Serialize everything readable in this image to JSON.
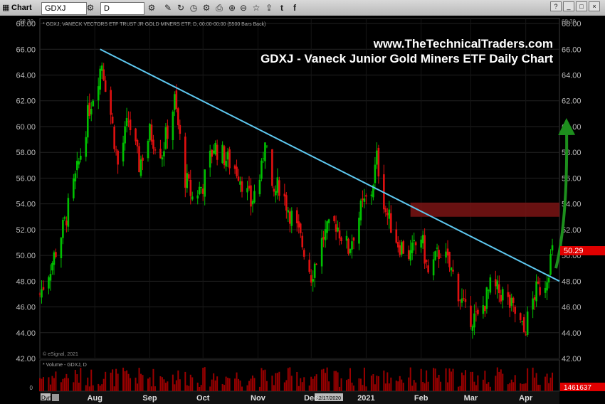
{
  "toolbar": {
    "app_label": "Chart",
    "symbol": "GDXJ",
    "interval": "D",
    "icons": [
      "pencil-icon",
      "refresh-icon",
      "clock-icon",
      "gear-icon",
      "print-icon",
      "zoom-icon",
      "zoom-out-icon",
      "star-icon",
      "share-icon",
      "twitter-icon",
      "facebook-icon"
    ],
    "window_buttons": [
      "?",
      "_",
      "□",
      "×"
    ]
  },
  "header": {
    "website": "www.TheTechnicalTraders.com",
    "title": "GDXJ - Vaneck Junior Gold Miners ETF Daily Chart",
    "info": "* GDXJ, VANECK VECTORS ETF TRUST JR GOLD MINERS ETF, D, 00:00-00:00 (5500 Bars Back)",
    "copyright": "© eSignal, 2021",
    "top_value": "68.39"
  },
  "price_panel": {
    "last_price": "50.29",
    "last_price_color": "#e00000"
  },
  "volume_panel": {
    "label": "* Volume - GDXJ, D",
    "last_volume": "1461637"
  },
  "x_axis": {
    "dyn_label": "Dyn",
    "cursor_date": "12/17/2020",
    "months": [
      "Aug",
      "Sep",
      "Oct",
      "Nov",
      "Dec",
      "2021",
      "Feb",
      "Mar",
      "Apr"
    ]
  },
  "chart_data": [
    {
      "type": "candlestick",
      "title": "GDXJ - Vaneck Junior Gold Miners ETF Daily Chart",
      "x_range": [
        "2020-07-01",
        "2021-04-20"
      ],
      "ylim": [
        42,
        68.39
      ],
      "yticks": [
        42,
        44,
        46,
        48,
        50,
        52,
        54,
        56,
        58,
        60,
        62,
        64,
        66,
        68
      ],
      "ytick_labels": [
        "42.00",
        "44.00",
        "46.00",
        "48.00",
        "50.00",
        "52.00",
        "54.00",
        "56.00",
        "58.00",
        "60.00",
        "62.00",
        "64.00",
        "66.00",
        "68.00"
      ],
      "up_color": "#00c000",
      "down_color": "#e01010",
      "close_path": [
        [
          "2020-07-01",
          47.0
        ],
        [
          "2020-07-08",
          49.5
        ],
        [
          "2020-07-15",
          52.5
        ],
        [
          "2020-07-22",
          56.5
        ],
        [
          "2020-07-29",
          61.5
        ],
        [
          "2020-08-05",
          65.0
        ],
        [
          "2020-08-10",
          61.0
        ],
        [
          "2020-08-14",
          57.0
        ],
        [
          "2020-08-20",
          60.5
        ],
        [
          "2020-08-26",
          57.0
        ],
        [
          "2020-09-01",
          59.5
        ],
        [
          "2020-09-08",
          58.0
        ],
        [
          "2020-09-15",
          62.0
        ],
        [
          "2020-09-21",
          56.0
        ],
        [
          "2020-09-25",
          54.5
        ],
        [
          "2020-10-01",
          55.5
        ],
        [
          "2020-10-07",
          58.5
        ],
        [
          "2020-10-14",
          57.5
        ],
        [
          "2020-10-21",
          56.5
        ],
        [
          "2020-10-28",
          54.0
        ],
        [
          "2020-11-03",
          56.5
        ],
        [
          "2020-11-05",
          59.5
        ],
        [
          "2020-11-09",
          54.5
        ],
        [
          "2020-11-13",
          55.5
        ],
        [
          "2020-11-20",
          53.0
        ],
        [
          "2020-11-27",
          50.5
        ],
        [
          "2020-12-01",
          48.5
        ],
        [
          "2020-12-08",
          51.5
        ],
        [
          "2020-12-15",
          52.5
        ],
        [
          "2020-12-22",
          50.5
        ],
        [
          "2020-12-29",
          53.5
        ],
        [
          "2021-01-04",
          55.0
        ],
        [
          "2021-01-07",
          57.5
        ],
        [
          "2021-01-12",
          53.5
        ],
        [
          "2021-01-19",
          51.0
        ],
        [
          "2021-01-26",
          50.0
        ],
        [
          "2021-02-01",
          51.5
        ],
        [
          "2021-02-05",
          48.5
        ],
        [
          "2021-02-12",
          50.5
        ],
        [
          "2021-02-19",
          48.5
        ],
        [
          "2021-02-26",
          45.5
        ],
        [
          "2021-03-05",
          45.0
        ],
        [
          "2021-03-12",
          47.5
        ],
        [
          "2021-03-19",
          47.0
        ],
        [
          "2021-03-26",
          45.5
        ],
        [
          "2021-03-31",
          44.0
        ],
        [
          "2021-04-06",
          47.0
        ],
        [
          "2021-04-12",
          48.0
        ],
        [
          "2021-04-16",
          50.3
        ]
      ],
      "last_close": 50.29
    },
    {
      "type": "bar",
      "title": "Volume - GDXJ, D",
      "last_value": 1461637,
      "color": "#9a0000"
    }
  ],
  "annotations": {
    "trendline": {
      "from": [
        "2020-08-04",
        66.0
      ],
      "to": [
        "2021-04-20",
        48.0
      ],
      "color": "#5ec8f0"
    },
    "resistance_zone": {
      "x_from": "2021-01-26",
      "x_to": "2021-04-20",
      "y_from": 53.0,
      "y_to": 54.1,
      "color": "#7a1414"
    },
    "projection_arrow": {
      "from": [
        "2021-04-18",
        49.0
      ],
      "to": [
        "2021-04-24",
        60.0
      ],
      "color": "#1d8f1d"
    }
  }
}
